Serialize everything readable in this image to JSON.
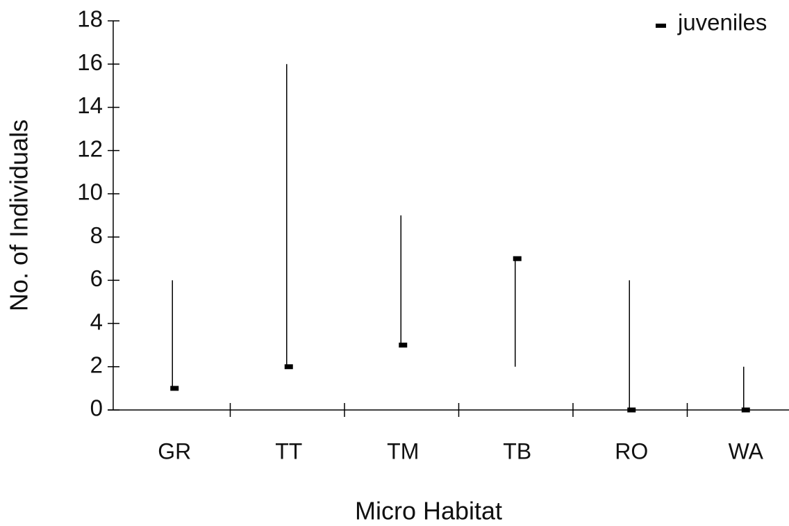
{
  "chart_data": {
    "type": "range",
    "xlabel": "Micro Habitat",
    "ylabel": "No. of Individuals",
    "categories": [
      "GR",
      "TT",
      "TM",
      "TB",
      "RO",
      "WA"
    ],
    "range_low": [
      1,
      2,
      3,
      2,
      0,
      0
    ],
    "range_high": [
      6,
      16,
      9,
      7,
      6,
      2
    ],
    "series": [
      {
        "name": "juveniles",
        "color": "#000000",
        "values": [
          1,
          2,
          3,
          7,
          0,
          0
        ]
      }
    ],
    "ylim": [
      0,
      18
    ],
    "yticks": [
      0,
      2,
      4,
      6,
      8,
      10,
      12,
      14,
      16,
      18
    ],
    "legend": "upper right"
  }
}
